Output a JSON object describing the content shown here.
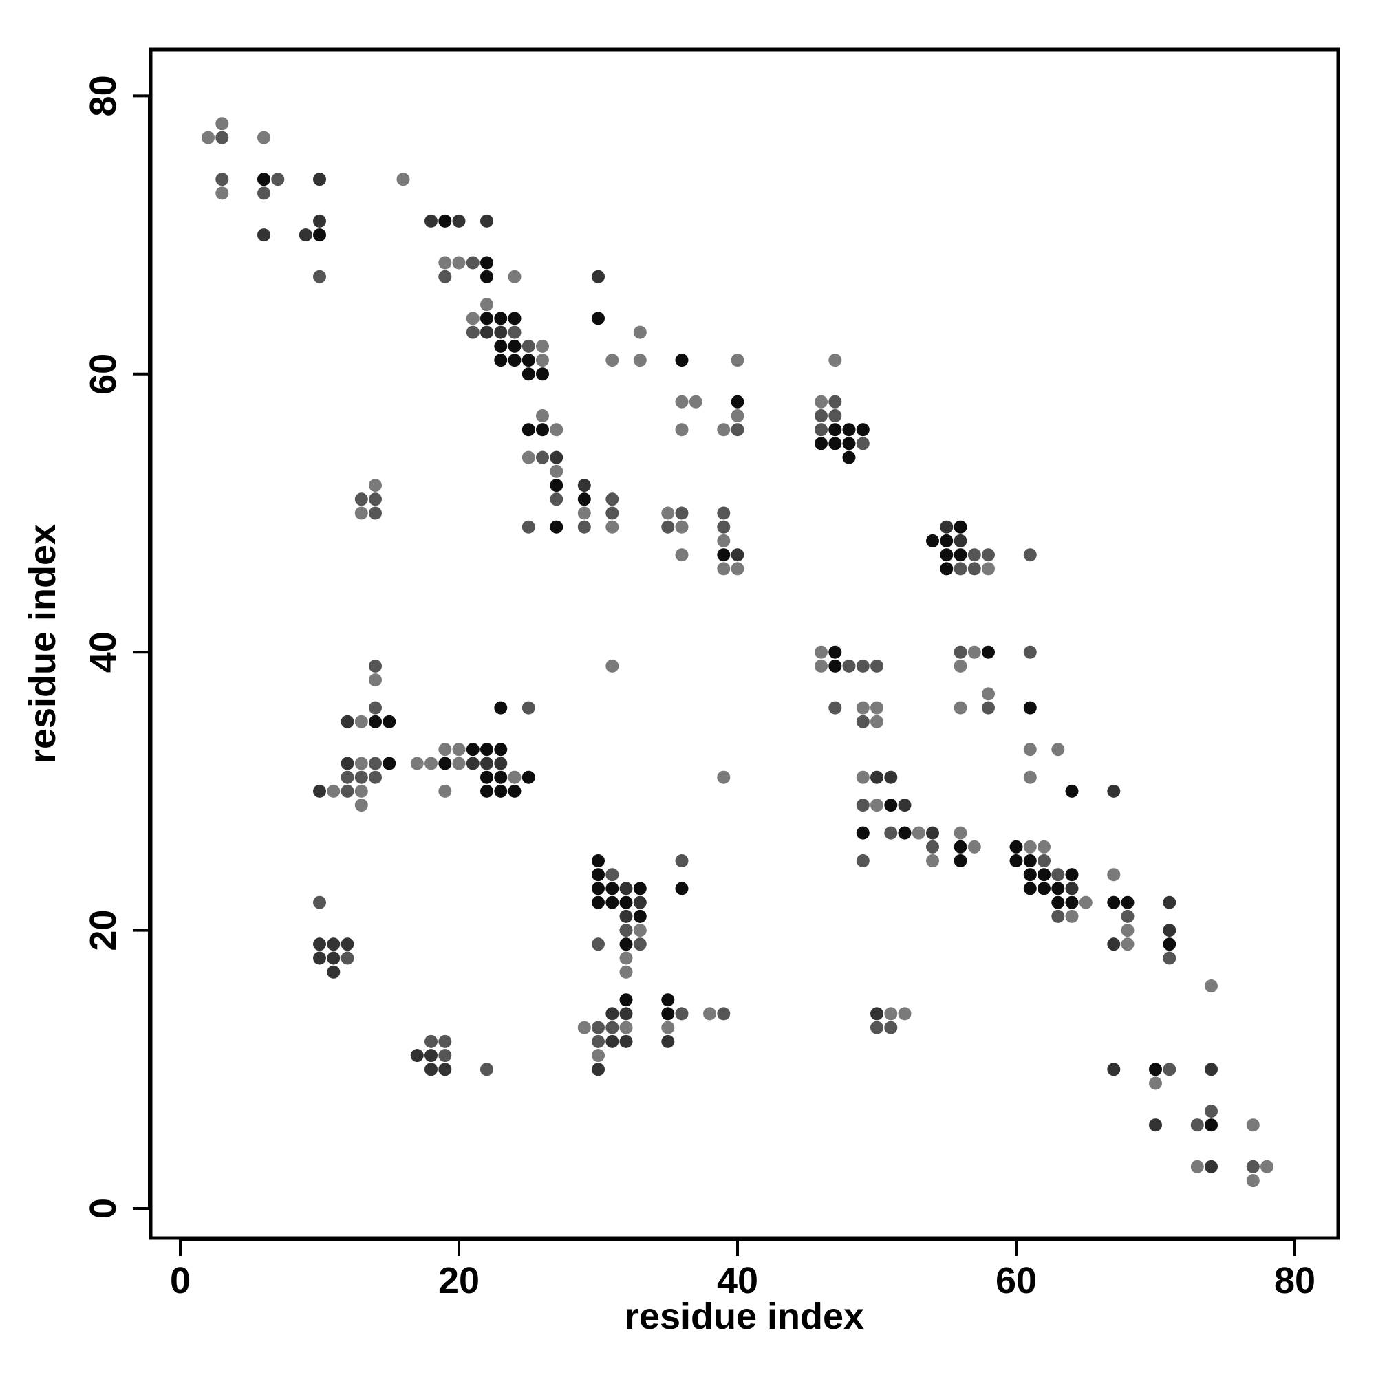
{
  "chart_data": {
    "type": "scatter",
    "title": "",
    "xlabel": "residue index",
    "ylabel": "residue index",
    "xlim": [
      -2.2,
      83
    ],
    "ylim": [
      -2.2,
      83
    ],
    "xticks": [
      0,
      20,
      40,
      60,
      80
    ],
    "yticks": [
      0,
      20,
      40,
      60,
      80
    ],
    "grid": false,
    "legend": "none",
    "colors": {
      "very-dark": "#0d0d0d",
      "dark": "#333333",
      "medium": "#555555",
      "light": "#7a7a7a"
    },
    "levels": [
      "very-dark",
      "dark",
      "medium",
      "light"
    ],
    "points": [
      [
        2,
        77,
        3
      ],
      [
        3,
        78,
        3
      ],
      [
        3,
        77,
        2
      ],
      [
        3,
        74,
        2
      ],
      [
        3,
        73,
        3
      ],
      [
        6,
        77,
        3
      ],
      [
        6,
        74,
        0
      ],
      [
        6,
        73,
        2
      ],
      [
        6,
        70,
        1
      ],
      [
        7,
        74,
        2
      ],
      [
        9,
        70,
        1
      ],
      [
        10,
        74,
        1
      ],
      [
        10,
        71,
        1
      ],
      [
        10,
        70,
        0
      ],
      [
        10,
        67,
        2
      ],
      [
        16,
        74,
        3
      ],
      [
        18,
        71,
        1
      ],
      [
        19,
        71,
        0
      ],
      [
        20,
        71,
        1
      ],
      [
        22,
        71,
        1
      ],
      [
        19,
        68,
        3
      ],
      [
        19,
        67,
        2
      ],
      [
        20,
        68,
        3
      ],
      [
        21,
        68,
        2
      ],
      [
        22,
        68,
        0
      ],
      [
        22,
        67,
        0
      ],
      [
        24,
        67,
        3
      ],
      [
        22,
        65,
        3
      ],
      [
        21,
        64,
        3
      ],
      [
        22,
        64,
        0
      ],
      [
        23,
        64,
        0
      ],
      [
        24,
        64,
        0
      ],
      [
        21,
        63,
        2
      ],
      [
        22,
        63,
        1
      ],
      [
        23,
        63,
        1
      ],
      [
        24,
        63,
        2
      ],
      [
        23,
        62,
        0
      ],
      [
        24,
        62,
        0
      ],
      [
        25,
        62,
        2
      ],
      [
        26,
        62,
        3
      ],
      [
        23,
        61,
        0
      ],
      [
        24,
        61,
        0
      ],
      [
        25,
        61,
        0
      ],
      [
        26,
        61,
        3
      ],
      [
        25,
        60,
        0
      ],
      [
        26,
        60,
        0
      ],
      [
        30,
        67,
        1
      ],
      [
        30,
        64,
        0
      ],
      [
        31,
        61,
        3
      ],
      [
        33,
        63,
        3
      ],
      [
        33,
        61,
        3
      ],
      [
        36,
        61,
        0
      ],
      [
        40,
        61,
        3
      ],
      [
        36,
        58,
        3
      ],
      [
        37,
        58,
        3
      ],
      [
        36,
        56,
        3
      ],
      [
        40,
        58,
        0
      ],
      [
        40,
        57,
        3
      ],
      [
        39,
        56,
        3
      ],
      [
        40,
        56,
        2
      ],
      [
        46,
        58,
        3
      ],
      [
        47,
        58,
        2
      ],
      [
        47,
        61,
        3
      ],
      [
        46,
        57,
        2
      ],
      [
        47,
        57,
        2
      ],
      [
        46,
        56,
        2
      ],
      [
        47,
        56,
        0
      ],
      [
        48,
        56,
        0
      ],
      [
        49,
        56,
        0
      ],
      [
        46,
        55,
        0
      ],
      [
        47,
        55,
        0
      ],
      [
        48,
        55,
        0
      ],
      [
        49,
        55,
        2
      ],
      [
        48,
        54,
        0
      ],
      [
        26,
        57,
        3
      ],
      [
        25,
        56,
        0
      ],
      [
        26,
        56,
        0
      ],
      [
        27,
        56,
        3
      ],
      [
        25,
        54,
        3
      ],
      [
        26,
        54,
        2
      ],
      [
        27,
        54,
        1
      ],
      [
        27,
        53,
        3
      ],
      [
        27,
        52,
        0
      ],
      [
        27,
        51,
        2
      ],
      [
        29,
        52,
        1
      ],
      [
        29,
        51,
        0
      ],
      [
        29,
        50,
        3
      ],
      [
        31,
        51,
        2
      ],
      [
        31,
        50,
        2
      ],
      [
        25,
        49,
        2
      ],
      [
        27,
        49,
        0
      ],
      [
        29,
        49,
        2
      ],
      [
        31,
        49,
        3
      ],
      [
        13,
        51,
        2
      ],
      [
        14,
        52,
        3
      ],
      [
        14,
        51,
        2
      ],
      [
        13,
        50,
        3
      ],
      [
        14,
        50,
        2
      ],
      [
        35,
        50,
        3
      ],
      [
        36,
        50,
        2
      ],
      [
        35,
        49,
        2
      ],
      [
        36,
        49,
        3
      ],
      [
        36,
        47,
        3
      ],
      [
        39,
        50,
        2
      ],
      [
        39,
        49,
        2
      ],
      [
        39,
        48,
        3
      ],
      [
        39,
        47,
        0
      ],
      [
        40,
        47,
        1
      ],
      [
        39,
        46,
        3
      ],
      [
        40,
        46,
        3
      ],
      [
        54,
        48,
        0
      ],
      [
        55,
        49,
        1
      ],
      [
        56,
        49,
        0
      ],
      [
        55,
        48,
        0
      ],
      [
        56,
        48,
        1
      ],
      [
        55,
        47,
        0
      ],
      [
        56,
        47,
        0
      ],
      [
        57,
        47,
        2
      ],
      [
        58,
        47,
        2
      ],
      [
        55,
        46,
        0
      ],
      [
        56,
        46,
        2
      ],
      [
        57,
        46,
        2
      ],
      [
        58,
        46,
        3
      ],
      [
        61,
        47,
        2
      ],
      [
        46,
        40,
        3
      ],
      [
        47,
        40,
        0
      ],
      [
        46,
        39,
        3
      ],
      [
        47,
        39,
        0
      ],
      [
        48,
        39,
        2
      ],
      [
        49,
        39,
        2
      ],
      [
        50,
        39,
        2
      ],
      [
        47,
        36,
        2
      ],
      [
        49,
        36,
        3
      ],
      [
        50,
        36,
        3
      ],
      [
        49,
        35,
        2
      ],
      [
        50,
        35,
        3
      ],
      [
        56,
        40,
        2
      ],
      [
        57,
        40,
        3
      ],
      [
        58,
        40,
        0
      ],
      [
        56,
        39,
        3
      ],
      [
        58,
        37,
        3
      ],
      [
        56,
        36,
        3
      ],
      [
        58,
        36,
        2
      ],
      [
        61,
        40,
        2
      ],
      [
        61,
        36,
        0
      ],
      [
        14,
        39,
        2
      ],
      [
        14,
        38,
        3
      ],
      [
        14,
        36,
        2
      ],
      [
        31,
        39,
        3
      ],
      [
        12,
        35,
        1
      ],
      [
        13,
        35,
        3
      ],
      [
        14,
        35,
        0
      ],
      [
        15,
        35,
        0
      ],
      [
        12,
        32,
        1
      ],
      [
        13,
        32,
        3
      ],
      [
        14,
        32,
        2
      ],
      [
        15,
        32,
        0
      ],
      [
        12,
        31,
        2
      ],
      [
        13,
        31,
        2
      ],
      [
        14,
        31,
        2
      ],
      [
        10,
        30,
        1
      ],
      [
        11,
        30,
        3
      ],
      [
        12,
        30,
        2
      ],
      [
        13,
        30,
        3
      ],
      [
        13,
        29,
        3
      ],
      [
        17,
        32,
        3
      ],
      [
        18,
        32,
        3
      ],
      [
        19,
        32,
        0
      ],
      [
        20,
        32,
        3
      ],
      [
        21,
        32,
        1
      ],
      [
        22,
        32,
        1
      ],
      [
        23,
        32,
        1
      ],
      [
        19,
        33,
        3
      ],
      [
        20,
        33,
        3
      ],
      [
        21,
        33,
        0
      ],
      [
        22,
        33,
        0
      ],
      [
        23,
        33,
        0
      ],
      [
        19,
        30,
        3
      ],
      [
        22,
        31,
        0
      ],
      [
        23,
        31,
        0
      ],
      [
        24,
        31,
        3
      ],
      [
        25,
        31,
        0
      ],
      [
        22,
        30,
        0
      ],
      [
        23,
        30,
        0
      ],
      [
        24,
        30,
        0
      ],
      [
        23,
        36,
        0
      ],
      [
        25,
        36,
        2
      ],
      [
        39,
        31,
        3
      ],
      [
        49,
        31,
        3
      ],
      [
        50,
        31,
        1
      ],
      [
        51,
        31,
        1
      ],
      [
        49,
        29,
        2
      ],
      [
        50,
        29,
        3
      ],
      [
        51,
        29,
        0
      ],
      [
        52,
        29,
        1
      ],
      [
        49,
        27,
        0
      ],
      [
        51,
        27,
        2
      ],
      [
        52,
        27,
        0
      ],
      [
        53,
        27,
        3
      ],
      [
        54,
        27,
        1
      ],
      [
        54,
        26,
        2
      ],
      [
        54,
        25,
        3
      ],
      [
        56,
        27,
        3
      ],
      [
        56,
        26,
        0
      ],
      [
        57,
        26,
        3
      ],
      [
        56,
        25,
        0
      ],
      [
        49,
        25,
        2
      ],
      [
        61,
        33,
        3
      ],
      [
        63,
        33,
        3
      ],
      [
        61,
        31,
        3
      ],
      [
        64,
        30,
        0
      ],
      [
        67,
        30,
        1
      ],
      [
        60,
        26,
        0
      ],
      [
        61,
        26,
        3
      ],
      [
        62,
        26,
        3
      ],
      [
        60,
        25,
        0
      ],
      [
        61,
        25,
        0
      ],
      [
        62,
        25,
        2
      ],
      [
        61,
        24,
        0
      ],
      [
        62,
        24,
        0
      ],
      [
        63,
        24,
        2
      ],
      [
        64,
        24,
        0
      ],
      [
        61,
        23,
        0
      ],
      [
        62,
        23,
        0
      ],
      [
        63,
        23,
        0
      ],
      [
        64,
        23,
        1
      ],
      [
        63,
        22,
        0
      ],
      [
        64,
        22,
        0
      ],
      [
        65,
        22,
        3
      ],
      [
        63,
        21,
        2
      ],
      [
        64,
        21,
        3
      ],
      [
        67,
        24,
        3
      ],
      [
        67,
        22,
        0
      ],
      [
        68,
        22,
        0
      ],
      [
        68,
        21,
        2
      ],
      [
        68,
        20,
        3
      ],
      [
        67,
        19,
        1
      ],
      [
        68,
        19,
        3
      ],
      [
        71,
        22,
        1
      ],
      [
        71,
        20,
        1
      ],
      [
        71,
        19,
        0
      ],
      [
        71,
        18,
        2
      ],
      [
        74,
        16,
        3
      ],
      [
        36,
        25,
        2
      ],
      [
        36,
        23,
        0
      ],
      [
        30,
        25,
        0
      ],
      [
        30,
        24,
        0
      ],
      [
        31,
        24,
        2
      ],
      [
        30,
        23,
        0
      ],
      [
        31,
        23,
        0
      ],
      [
        32,
        23,
        1
      ],
      [
        33,
        23,
        0
      ],
      [
        30,
        22,
        0
      ],
      [
        31,
        22,
        0
      ],
      [
        32,
        22,
        0
      ],
      [
        33,
        22,
        1
      ],
      [
        32,
        21,
        1
      ],
      [
        33,
        21,
        0
      ],
      [
        32,
        20,
        2
      ],
      [
        33,
        20,
        3
      ],
      [
        30,
        19,
        2
      ],
      [
        32,
        19,
        0
      ],
      [
        33,
        19,
        2
      ],
      [
        32,
        18,
        3
      ],
      [
        32,
        17,
        3
      ],
      [
        10,
        22,
        2
      ],
      [
        10,
        19,
        1
      ],
      [
        11,
        19,
        1
      ],
      [
        12,
        19,
        1
      ],
      [
        10,
        18,
        1
      ],
      [
        11,
        18,
        1
      ],
      [
        12,
        18,
        2
      ],
      [
        11,
        17,
        1
      ],
      [
        32,
        15,
        0
      ],
      [
        31,
        14,
        1
      ],
      [
        32,
        14,
        1
      ],
      [
        29,
        13,
        3
      ],
      [
        30,
        13,
        2
      ],
      [
        31,
        13,
        2
      ],
      [
        32,
        13,
        3
      ],
      [
        30,
        12,
        2
      ],
      [
        31,
        12,
        1
      ],
      [
        32,
        12,
        1
      ],
      [
        30,
        11,
        3
      ],
      [
        30,
        10,
        1
      ],
      [
        35,
        15,
        0
      ],
      [
        35,
        14,
        0
      ],
      [
        36,
        14,
        2
      ],
      [
        35,
        13,
        3
      ],
      [
        35,
        12,
        1
      ],
      [
        38,
        14,
        3
      ],
      [
        39,
        14,
        2
      ],
      [
        50,
        14,
        1
      ],
      [
        51,
        14,
        3
      ],
      [
        52,
        14,
        3
      ],
      [
        50,
        13,
        2
      ],
      [
        51,
        13,
        2
      ],
      [
        17,
        11,
        1
      ],
      [
        18,
        12,
        2
      ],
      [
        19,
        12,
        2
      ],
      [
        18,
        11,
        1
      ],
      [
        19,
        11,
        2
      ],
      [
        18,
        10,
        1
      ],
      [
        19,
        10,
        1
      ],
      [
        22,
        10,
        2
      ],
      [
        67,
        10,
        1
      ],
      [
        70,
        10,
        0
      ],
      [
        71,
        10,
        2
      ],
      [
        70,
        9,
        3
      ],
      [
        74,
        10,
        1
      ],
      [
        70,
        6,
        1
      ],
      [
        73,
        6,
        2
      ],
      [
        74,
        7,
        2
      ],
      [
        74,
        6,
        0
      ],
      [
        73,
        3,
        3
      ],
      [
        74,
        3,
        1
      ],
      [
        77,
        6,
        3
      ],
      [
        77,
        3,
        2
      ],
      [
        78,
        3,
        3
      ],
      [
        77,
        2,
        3
      ]
    ]
  }
}
